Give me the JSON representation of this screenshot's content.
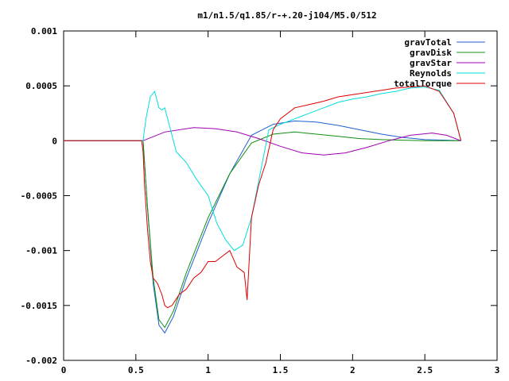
{
  "chart_data": {
    "type": "line",
    "title": "m1/n1.5/q1.85/r-+.20-j104/M5.0/512",
    "xlabel": "",
    "ylabel": "",
    "xlim": [
      0,
      3
    ],
    "ylim": [
      -0.002,
      0.001
    ],
    "x_ticks": [
      "0",
      "0.5",
      "1",
      "1.5",
      "2",
      "2.5",
      "3"
    ],
    "x_tick_values": [
      0,
      0.5,
      1,
      1.5,
      2,
      2.5,
      3
    ],
    "y_ticks": [
      "0.001",
      "0.0005",
      "0",
      "-0.0005",
      "-0.001",
      "-0.0015",
      "-0.002"
    ],
    "y_tick_values": [
      0.001,
      0.0005,
      0,
      -0.0005,
      -0.001,
      -0.0015,
      -0.002
    ],
    "grid": false,
    "legend_position": "top-right",
    "series": [
      {
        "name": "gravTotal",
        "color": "#1f5fd0",
        "x": [
          0,
          0.55,
          0.58,
          0.62,
          0.66,
          0.7,
          0.76,
          0.85,
          1.0,
          1.15,
          1.3,
          1.45,
          1.6,
          1.75,
          1.9,
          2.05,
          2.2,
          2.35,
          2.5,
          2.65,
          2.75
        ],
        "y": [
          0,
          0,
          -0.0006,
          -0.0013,
          -0.00168,
          -0.00175,
          -0.0016,
          -0.00125,
          -0.00075,
          -0.0003,
          5e-05,
          0.00015,
          0.00018,
          0.00017,
          0.00014,
          0.0001,
          6e-05,
          3e-05,
          1e-05,
          5e-06,
          0
        ]
      },
      {
        "name": "gravDisk",
        "color": "#109010",
        "x": [
          0,
          0.55,
          0.58,
          0.62,
          0.66,
          0.7,
          0.76,
          0.85,
          1.0,
          1.15,
          1.3,
          1.45,
          1.6,
          1.75,
          1.9,
          2.05,
          2.2,
          2.35,
          2.5,
          2.65,
          2.75
        ],
        "y": [
          0,
          0,
          -0.0006,
          -0.00125,
          -0.00163,
          -0.0017,
          -0.00155,
          -0.0012,
          -0.0007,
          -0.0003,
          -2e-05,
          6e-05,
          8e-05,
          6e-05,
          4e-05,
          2e-05,
          1e-05,
          5e-06,
          0,
          0,
          0
        ]
      },
      {
        "name": "gravStar",
        "color": "#a000b0",
        "x": [
          0,
          0.55,
          0.7,
          0.9,
          1.05,
          1.2,
          1.35,
          1.5,
          1.65,
          1.8,
          1.95,
          2.1,
          2.25,
          2.4,
          2.55,
          2.65,
          2.75
        ],
        "y": [
          0,
          0,
          8e-05,
          0.00012,
          0.00011,
          8e-05,
          2e-05,
          -5e-05,
          -0.00011,
          -0.00013,
          -0.00011,
          -6e-05,
          0,
          5e-05,
          7e-05,
          5e-05,
          0
        ]
      },
      {
        "name": "Reynolds",
        "color": "#00dede",
        "x": [
          0,
          0.55,
          0.57,
          0.6,
          0.63,
          0.66,
          0.68,
          0.7,
          0.73,
          0.78,
          0.85,
          0.92,
          1.0,
          1.06,
          1.12,
          1.18,
          1.24,
          1.3,
          1.36,
          1.42,
          1.5,
          1.6,
          1.7,
          1.8,
          1.9,
          2.0,
          2.1,
          2.2,
          2.3,
          2.4,
          2.5,
          2.6,
          2.7,
          2.75
        ],
        "y": [
          0,
          0,
          0.0002,
          0.0004,
          0.00045,
          0.0003,
          0.00028,
          0.0003,
          0.00015,
          -0.0001,
          -0.0002,
          -0.00035,
          -0.0005,
          -0.00075,
          -0.0009,
          -0.001,
          -0.00095,
          -0.0007,
          -0.0003,
          0.0001,
          0.00015,
          0.0002,
          0.00025,
          0.0003,
          0.00035,
          0.00038,
          0.0004,
          0.00043,
          0.00045,
          0.00048,
          0.00049,
          0.00046,
          0.00025,
          0
        ]
      },
      {
        "name": "totalTorque",
        "color": "#e00000",
        "x": [
          0,
          0.54,
          0.55,
          0.56,
          0.58,
          0.6,
          0.62,
          0.65,
          0.68,
          0.7,
          0.72,
          0.75,
          0.8,
          0.85,
          0.9,
          0.95,
          1.0,
          1.05,
          1.1,
          1.15,
          1.2,
          1.25,
          1.27,
          1.3,
          1.35,
          1.4,
          1.45,
          1.5,
          1.6,
          1.7,
          1.8,
          1.9,
          2.0,
          2.1,
          2.2,
          2.3,
          2.4,
          2.5,
          2.6,
          2.7,
          2.75
        ],
        "y": [
          0,
          0,
          -0.0001,
          -0.0004,
          -0.0008,
          -0.0011,
          -0.00125,
          -0.0013,
          -0.0014,
          -0.0015,
          -0.00152,
          -0.0015,
          -0.0014,
          -0.00135,
          -0.00125,
          -0.0012,
          -0.0011,
          -0.0011,
          -0.00105,
          -0.001,
          -0.00115,
          -0.0012,
          -0.00145,
          -0.0007,
          -0.0004,
          -0.0002,
          0.0001,
          0.0002,
          0.0003,
          0.00033,
          0.00036,
          0.0004,
          0.00042,
          0.00044,
          0.00046,
          0.00048,
          0.00049,
          0.0005,
          0.00045,
          0.00025,
          0
        ]
      }
    ]
  }
}
